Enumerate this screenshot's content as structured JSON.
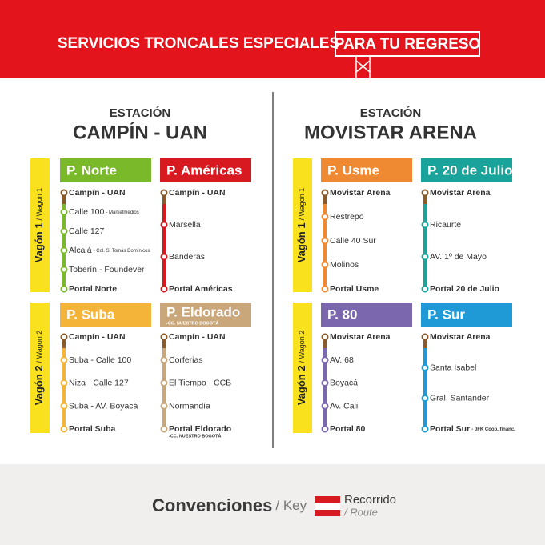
{
  "header": {
    "title": "SERVICIOS TRONCALES ESPECIALES",
    "highlight": "PARA TU REGRESO"
  },
  "stations": [
    {
      "label": "ESTACIÓN",
      "name": "CAMPÍN - UAN",
      "wagons": [
        {
          "label": "Vagón 1",
          "sub": "/ Wagon 1",
          "routes": [
            {
              "name": "P. Norte",
              "color": "#7ab929",
              "stops": [
                {
                  "text": "Campín - UAN"
                },
                {
                  "text": "Calle 100",
                  "note": "- Marketmedios"
                },
                {
                  "text": "Calle 127"
                },
                {
                  "text": "Alcalá",
                  "note": "- Col. S. Tomás Domínicos"
                },
                {
                  "text": "Toberín - Foundever"
                },
                {
                  "text": "Portal Norte"
                }
              ]
            },
            {
              "name": "P. Américas",
              "color": "#d71920",
              "stops": [
                {
                  "text": "Campín - UAN"
                },
                {
                  "text": "Marsella"
                },
                {
                  "text": "Banderas"
                },
                {
                  "text": "Portal Américas"
                }
              ]
            }
          ]
        },
        {
          "label": "Vagón 2",
          "sub": "/ Wagon 2",
          "routes": [
            {
              "name": "P. Suba",
              "color": "#f4b43a",
              "stops": [
                {
                  "text": "Campín - UAN"
                },
                {
                  "text": "Suba - Calle 100"
                },
                {
                  "text": "Niza - Calle 127"
                },
                {
                  "text": "Suba - AV. Boyacá"
                },
                {
                  "text": "Portal Suba"
                }
              ]
            },
            {
              "name": "P. Eldorado",
              "note": "-CC. NUESTRO BOGOTÁ",
              "color": "#c9a77a",
              "stops": [
                {
                  "text": "Campín - UAN"
                },
                {
                  "text": "Corferias"
                },
                {
                  "text": "El Tiempo - CCB"
                },
                {
                  "text": "Normandía"
                },
                {
                  "text": "Portal Eldorado",
                  "note": "-CC. NUESTRO BOGOTÁ"
                }
              ]
            }
          ]
        }
      ]
    },
    {
      "label": "ESTACIÓN",
      "name": "MOVISTAR ARENA",
      "wagons": [
        {
          "label": "Vagón 1",
          "sub": "/ Wagon 1",
          "routes": [
            {
              "name": "P. Usme",
              "color": "#ef8a32",
              "stops": [
                {
                  "text": "Movistar Arena"
                },
                {
                  "text": "Restrepo"
                },
                {
                  "text": "Calle 40 Sur"
                },
                {
                  "text": "Molinos"
                },
                {
                  "text": "Portal Usme"
                }
              ]
            },
            {
              "name": "P. 20 de Julio",
              "color": "#1aa39a",
              "stops": [
                {
                  "text": "Movistar Arena"
                },
                {
                  "text": "Ricaurte"
                },
                {
                  "text": "AV. 1º de Mayo"
                },
                {
                  "text": "Portal 20 de Julio"
                }
              ]
            }
          ]
        },
        {
          "label": "Vagón 2",
          "sub": "/ Wagon 2",
          "routes": [
            {
              "name": "P. 80",
              "color": "#7b67ad",
              "stops": [
                {
                  "text": "Movistar Arena"
                },
                {
                  "text": "AV. 68"
                },
                {
                  "text": "Boyacá"
                },
                {
                  "text": "Av. Cali"
                },
                {
                  "text": "Portal 80"
                }
              ]
            },
            {
              "name": "P. Sur",
              "color": "#1f9ad6",
              "stops": [
                {
                  "text": "Movistar Arena"
                },
                {
                  "text": "Santa Isabel"
                },
                {
                  "text": "Gral. Santander"
                },
                {
                  "text": "Portal Sur",
                  "note": "- JFK Coop. financ."
                }
              ]
            }
          ]
        }
      ]
    }
  ],
  "legend": {
    "title": "Convenciones",
    "title_sub": "/ Key",
    "item": "Recorrido",
    "item_sub": "/ Route"
  }
}
